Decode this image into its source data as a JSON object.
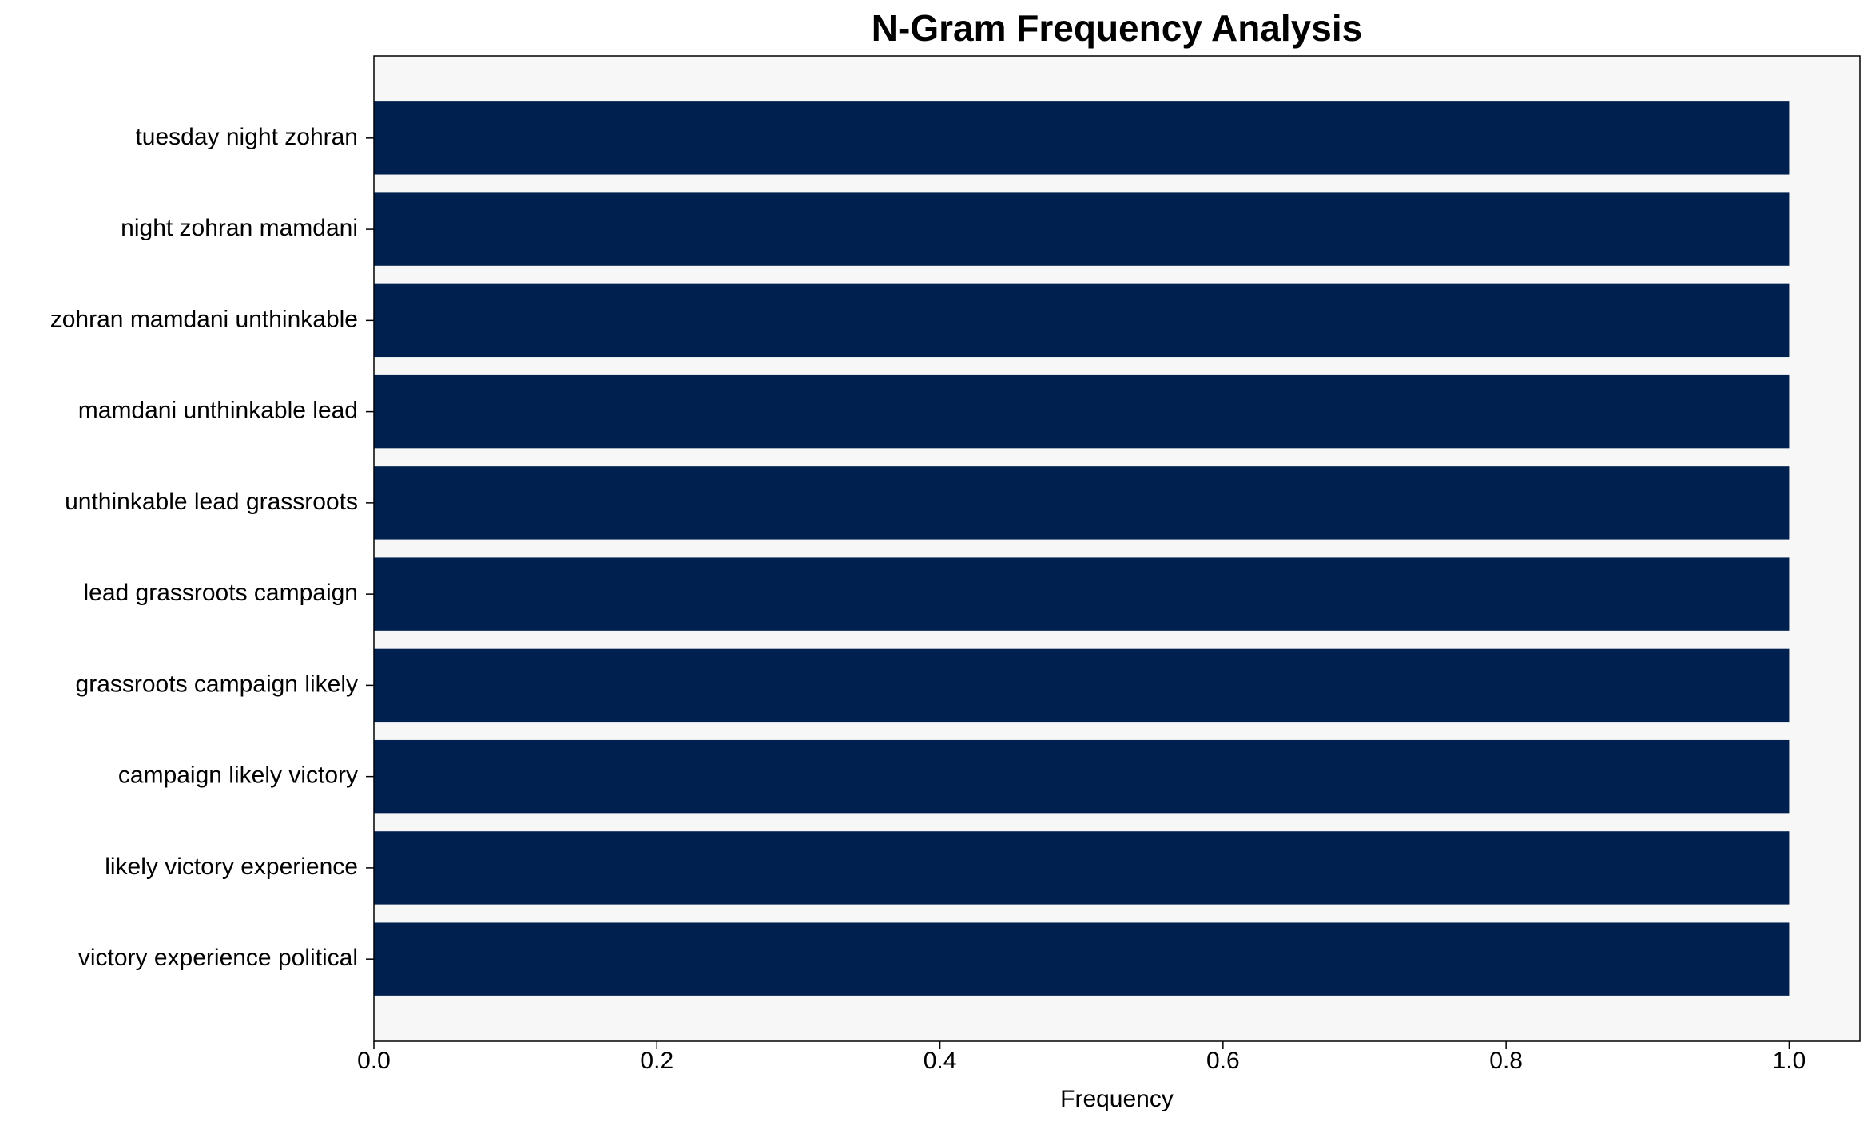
{
  "chart_data": {
    "type": "barh",
    "title": "N-Gram Frequency Analysis",
    "x_label": "Frequency",
    "categories": [
      "tuesday night zohran",
      "night zohran mamdani",
      "zohran mamdani unthinkable",
      "mamdani unthinkable lead",
      "unthinkable lead grassroots",
      "lead grassroots campaign",
      "grassroots campaign likely",
      "campaign likely victory",
      "likely victory experience",
      "victory experience political"
    ],
    "values": [
      1,
      1,
      1,
      1,
      1,
      1,
      1,
      1,
      1,
      1
    ],
    "color": "#00214f",
    "xlim": [
      0,
      1.05
    ],
    "xticks": [
      {
        "value": 0,
        "label": "0.0"
      },
      0.2,
      0.4,
      0.6,
      0.8,
      {
        "value": 1,
        "label": "1.0"
      }
    ],
    "grid": false
  }
}
